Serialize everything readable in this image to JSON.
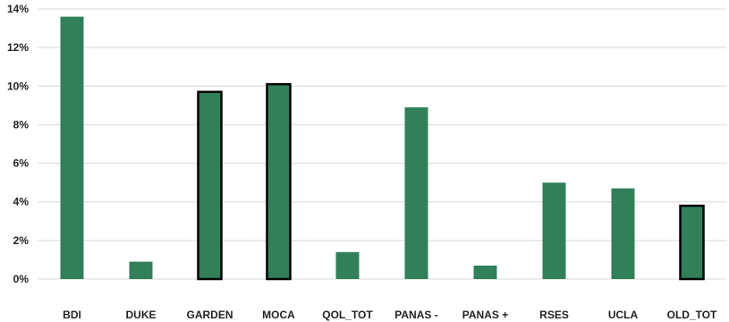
{
  "chart_data": {
    "type": "bar",
    "categories": [
      "BDI",
      "DUKE",
      "GARDEN",
      "MOCA",
      "QOL_TOT",
      "PANAS -",
      "PANAS +",
      "RSES",
      "UCLA",
      "OLD_TOT"
    ],
    "values": [
      13.6,
      0.9,
      9.7,
      10.1,
      1.4,
      8.9,
      0.7,
      5.0,
      4.7,
      3.8
    ],
    "outlined": [
      false,
      false,
      true,
      true,
      false,
      false,
      false,
      false,
      false,
      true
    ],
    "y_ticks": [
      "0%",
      "2%",
      "4%",
      "6%",
      "8%",
      "10%",
      "12%",
      "14%"
    ],
    "y_tick_values": [
      0,
      2,
      4,
      6,
      8,
      10,
      12,
      14
    ],
    "ylim": [
      0,
      14
    ],
    "grid": true,
    "title": "",
    "xlabel": "",
    "ylabel": "",
    "colors": {
      "bar": "#31805a",
      "outline": "#000000",
      "grid": "#d9d9d9"
    }
  }
}
